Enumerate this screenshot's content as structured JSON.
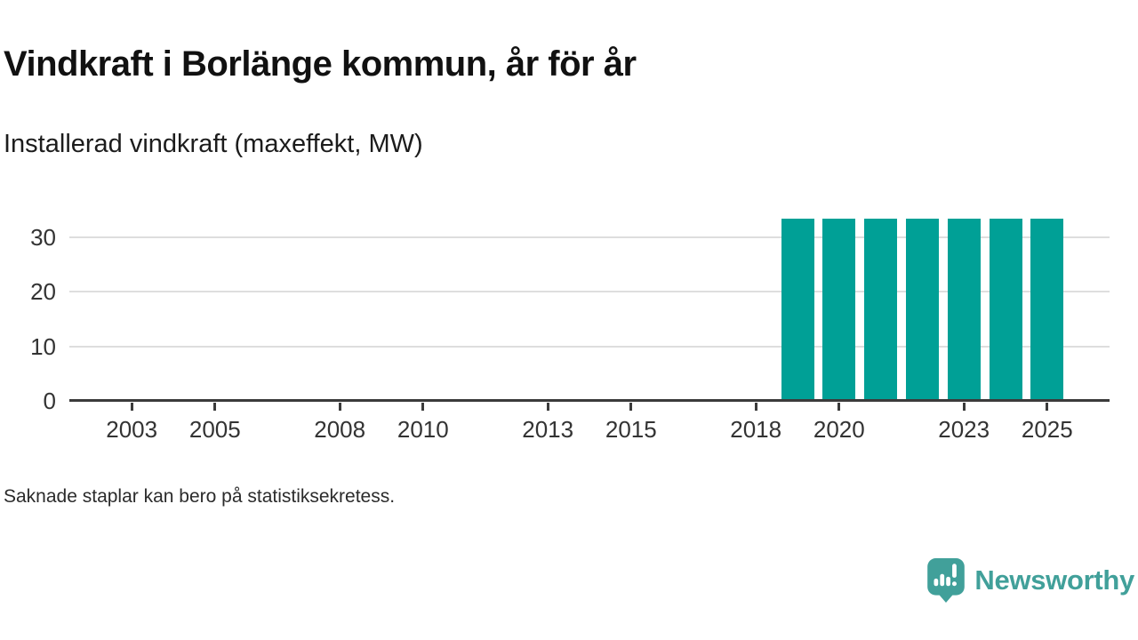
{
  "header": {
    "title": "Vindkraft i Borlänge kommun, år för år",
    "subtitle": "Installerad vindkraft (maxeffekt, MW)"
  },
  "footer": {
    "note": "Saknade staplar kan bero på statistiksekretess.",
    "logo_text": "Newsworthy"
  },
  "chart_data": {
    "type": "bar",
    "title": "Vindkraft i Borlänge kommun, år för år",
    "subtitle": "Installerad vindkraft (maxeffekt, MW)",
    "ylabel": "Installerad vindkraft (maxeffekt, MW)",
    "xlabel": "",
    "categories": [
      2002,
      2003,
      2004,
      2005,
      2006,
      2007,
      2008,
      2009,
      2010,
      2011,
      2012,
      2013,
      2014,
      2015,
      2016,
      2017,
      2018,
      2019,
      2020,
      2021,
      2022,
      2023,
      2024,
      2025
    ],
    "values": [
      null,
      null,
      null,
      null,
      null,
      null,
      null,
      null,
      null,
      null,
      null,
      null,
      null,
      null,
      null,
      null,
      null,
      33,
      33,
      33,
      33,
      33,
      33,
      33
    ],
    "x_ticks_shown": [
      2003,
      2005,
      2008,
      2010,
      2013,
      2015,
      2018,
      2020,
      2023,
      2025
    ],
    "y_ticks": [
      0,
      10,
      20,
      30
    ],
    "ylim": [
      0,
      34.3
    ],
    "grid": "horizontal",
    "legend": "none",
    "bar_color": "#00A096",
    "axis_color": "#3b3b3b",
    "grid_color": "#dedede",
    "logo_color": "#41a09a"
  }
}
